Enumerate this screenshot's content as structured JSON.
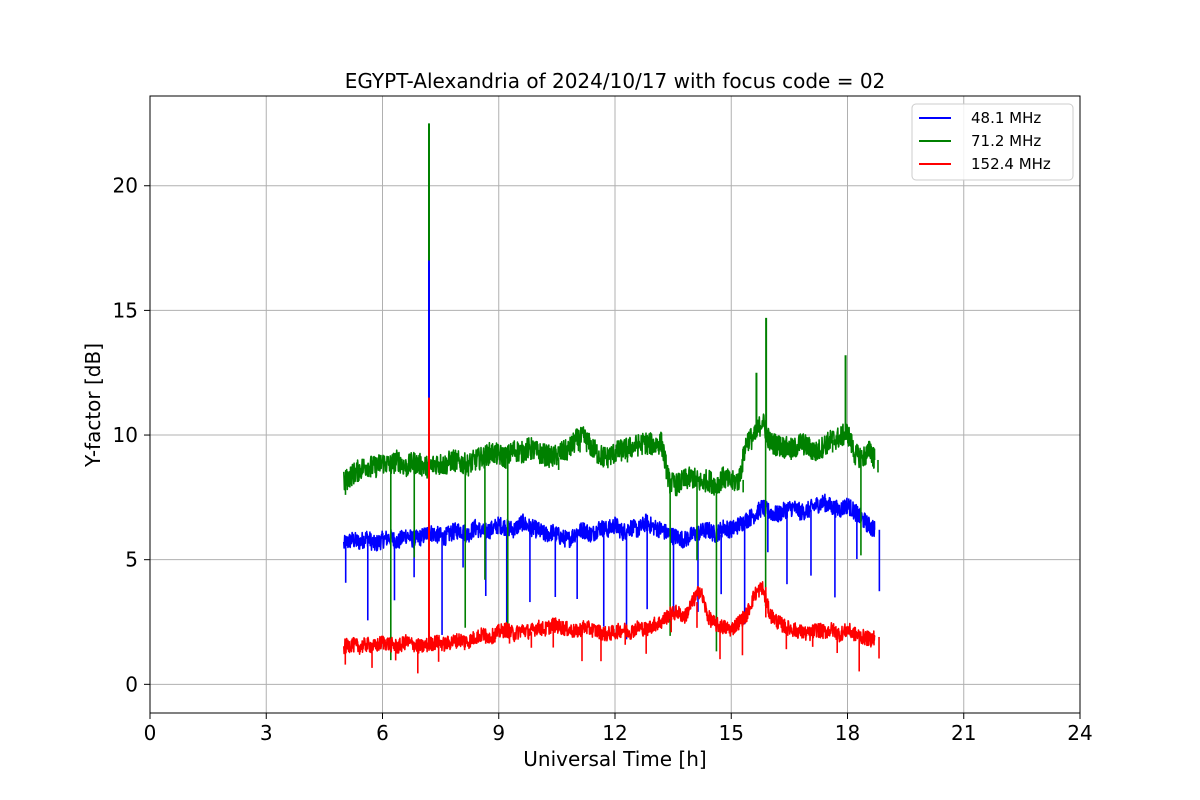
{
  "chart_data": {
    "type": "line",
    "title": "EGYPT-Alexandria of 2024/10/17 with focus code = 02",
    "xlabel": "Universal Time [h]",
    "ylabel": "Y-factor [dB]",
    "xlim": [
      0,
      24
    ],
    "ylim": [
      -1.15,
      23.6
    ],
    "xticks": [
      "0",
      "3",
      "6",
      "9",
      "12",
      "15",
      "18",
      "21",
      "24"
    ],
    "yticks": [
      "0",
      "5",
      "10",
      "15",
      "20"
    ],
    "grid": true,
    "legend_position": "top-right",
    "series": [
      {
        "name": "48.1 MHz",
        "color": "#0000ff",
        "x": [
          5.0,
          5.2,
          5.4,
          5.6,
          5.8,
          6.0,
          6.2,
          6.4,
          6.6,
          6.8,
          7.0,
          7.2,
          7.4,
          7.6,
          7.8,
          8.0,
          8.2,
          8.4,
          8.6,
          8.8,
          9.0,
          9.2,
          9.4,
          9.6,
          9.8,
          10.0,
          10.2,
          10.4,
          10.6,
          10.8,
          11.0,
          11.2,
          11.4,
          11.6,
          11.8,
          12.0,
          12.2,
          12.4,
          12.6,
          12.8,
          13.0,
          13.2,
          13.4,
          13.6,
          13.8,
          14.0,
          14.2,
          14.4,
          14.6,
          14.8,
          15.0,
          15.2,
          15.4,
          15.6,
          15.8,
          16.0,
          16.2,
          16.4,
          16.6,
          16.8,
          17.0,
          17.2,
          17.4,
          17.6,
          17.8,
          18.0,
          18.2,
          18.4,
          18.6,
          18.7
        ],
        "y": [
          5.6,
          5.8,
          5.7,
          5.9,
          5.6,
          5.8,
          5.9,
          5.7,
          6.0,
          5.8,
          5.9,
          6.1,
          6.0,
          5.9,
          6.1,
          6.2,
          6.0,
          6.3,
          6.1,
          6.2,
          6.4,
          6.3,
          6.2,
          6.5,
          6.3,
          6.2,
          6.0,
          6.1,
          5.9,
          5.8,
          6.1,
          6.2,
          6.0,
          6.3,
          6.2,
          6.4,
          6.1,
          6.3,
          6.2,
          6.5,
          6.3,
          6.2,
          6.0,
          5.9,
          5.8,
          6.0,
          6.1,
          6.2,
          6.0,
          6.3,
          6.2,
          6.4,
          6.6,
          6.8,
          7.1,
          6.9,
          6.8,
          7.0,
          7.1,
          6.9,
          7.0,
          7.2,
          7.3,
          7.1,
          7.0,
          7.2,
          6.9,
          6.6,
          6.3,
          6.2
        ]
      },
      {
        "name": "71.2 MHz",
        "color": "#008000",
        "x": [
          5.0,
          5.2,
          5.4,
          5.6,
          5.8,
          6.0,
          6.2,
          6.4,
          6.6,
          6.8,
          7.0,
          7.2,
          7.4,
          7.6,
          7.8,
          8.0,
          8.2,
          8.4,
          8.6,
          8.8,
          9.0,
          9.2,
          9.4,
          9.6,
          9.8,
          10.0,
          10.2,
          10.4,
          10.6,
          10.8,
          11.0,
          11.2,
          11.4,
          11.6,
          11.8,
          12.0,
          12.2,
          12.4,
          12.6,
          12.8,
          13.0,
          13.2,
          13.4,
          13.6,
          13.8,
          14.0,
          14.2,
          14.4,
          14.6,
          14.8,
          15.0,
          15.2,
          15.4,
          15.6,
          15.8,
          16.0,
          16.2,
          16.4,
          16.6,
          16.8,
          17.0,
          17.2,
          17.4,
          17.6,
          17.8,
          18.0,
          18.2,
          18.4,
          18.6,
          18.7
        ],
        "y": [
          8.1,
          8.4,
          8.6,
          8.8,
          8.7,
          8.9,
          8.8,
          9.0,
          8.7,
          8.9,
          8.8,
          8.7,
          8.9,
          8.8,
          9.0,
          8.9,
          8.8,
          9.0,
          9.1,
          9.3,
          9.2,
          9.1,
          9.4,
          9.3,
          9.5,
          9.3,
          9.2,
          9.1,
          9.3,
          9.4,
          9.8,
          9.9,
          9.5,
          9.2,
          9.1,
          9.3,
          9.4,
          9.5,
          9.6,
          9.7,
          9.6,
          9.7,
          8.1,
          8.0,
          8.2,
          8.3,
          8.1,
          8.2,
          8.0,
          8.3,
          8.1,
          8.2,
          9.8,
          9.9,
          10.6,
          9.7,
          9.6,
          9.5,
          9.4,
          9.7,
          9.5,
          9.3,
          9.6,
          9.8,
          9.9,
          10.1,
          9.2,
          9.1,
          9.4,
          9.0
        ]
      },
      {
        "name": "152.4 MHz",
        "color": "#ff0000",
        "x": [
          5.0,
          5.2,
          5.4,
          5.6,
          5.8,
          6.0,
          6.2,
          6.4,
          6.6,
          6.8,
          7.0,
          7.2,
          7.4,
          7.6,
          7.8,
          8.0,
          8.2,
          8.4,
          8.6,
          8.8,
          9.0,
          9.2,
          9.4,
          9.6,
          9.8,
          10.0,
          10.2,
          10.4,
          10.6,
          10.8,
          11.0,
          11.2,
          11.4,
          11.6,
          11.8,
          12.0,
          12.2,
          12.4,
          12.6,
          12.8,
          13.0,
          13.2,
          13.4,
          13.6,
          13.8,
          14.0,
          14.2,
          14.4,
          14.6,
          14.8,
          15.0,
          15.2,
          15.4,
          15.6,
          15.8,
          16.0,
          16.2,
          16.4,
          16.6,
          16.8,
          17.0,
          17.2,
          17.4,
          17.6,
          17.8,
          18.0,
          18.2,
          18.4,
          18.6,
          18.7
        ],
        "y": [
          1.5,
          1.6,
          1.5,
          1.6,
          1.5,
          1.7,
          1.6,
          1.5,
          1.7,
          1.6,
          1.5,
          1.6,
          1.7,
          1.6,
          1.7,
          1.8,
          1.7,
          1.9,
          2.0,
          1.9,
          2.1,
          2.2,
          2.0,
          2.2,
          2.1,
          2.3,
          2.2,
          2.4,
          2.3,
          2.2,
          2.1,
          2.3,
          2.2,
          2.1,
          2.0,
          2.1,
          2.2,
          2.1,
          2.3,
          2.2,
          2.4,
          2.5,
          2.8,
          2.9,
          2.7,
          3.3,
          3.8,
          2.7,
          2.4,
          2.3,
          2.2,
          2.5,
          2.8,
          3.6,
          3.9,
          2.8,
          2.5,
          2.3,
          2.2,
          2.1,
          2.0,
          2.2,
          2.1,
          2.2,
          2.0,
          2.2,
          2.0,
          1.9,
          1.8,
          1.9
        ]
      }
    ],
    "annotations": [
      {
        "series": 1,
        "x": 7.2,
        "y": 22.5,
        "type": "spike"
      },
      {
        "series": 0,
        "x": 7.2,
        "y": 17.0,
        "type": "spike"
      },
      {
        "series": 2,
        "x": 7.2,
        "y": 11.5,
        "type": "spike"
      },
      {
        "series": 1,
        "x": 15.9,
        "y": 14.7,
        "type": "spike"
      },
      {
        "series": 1,
        "x": 17.95,
        "y": 13.2,
        "type": "spike"
      },
      {
        "series": 1,
        "x": 15.65,
        "y": 12.5,
        "type": "spike"
      }
    ]
  }
}
